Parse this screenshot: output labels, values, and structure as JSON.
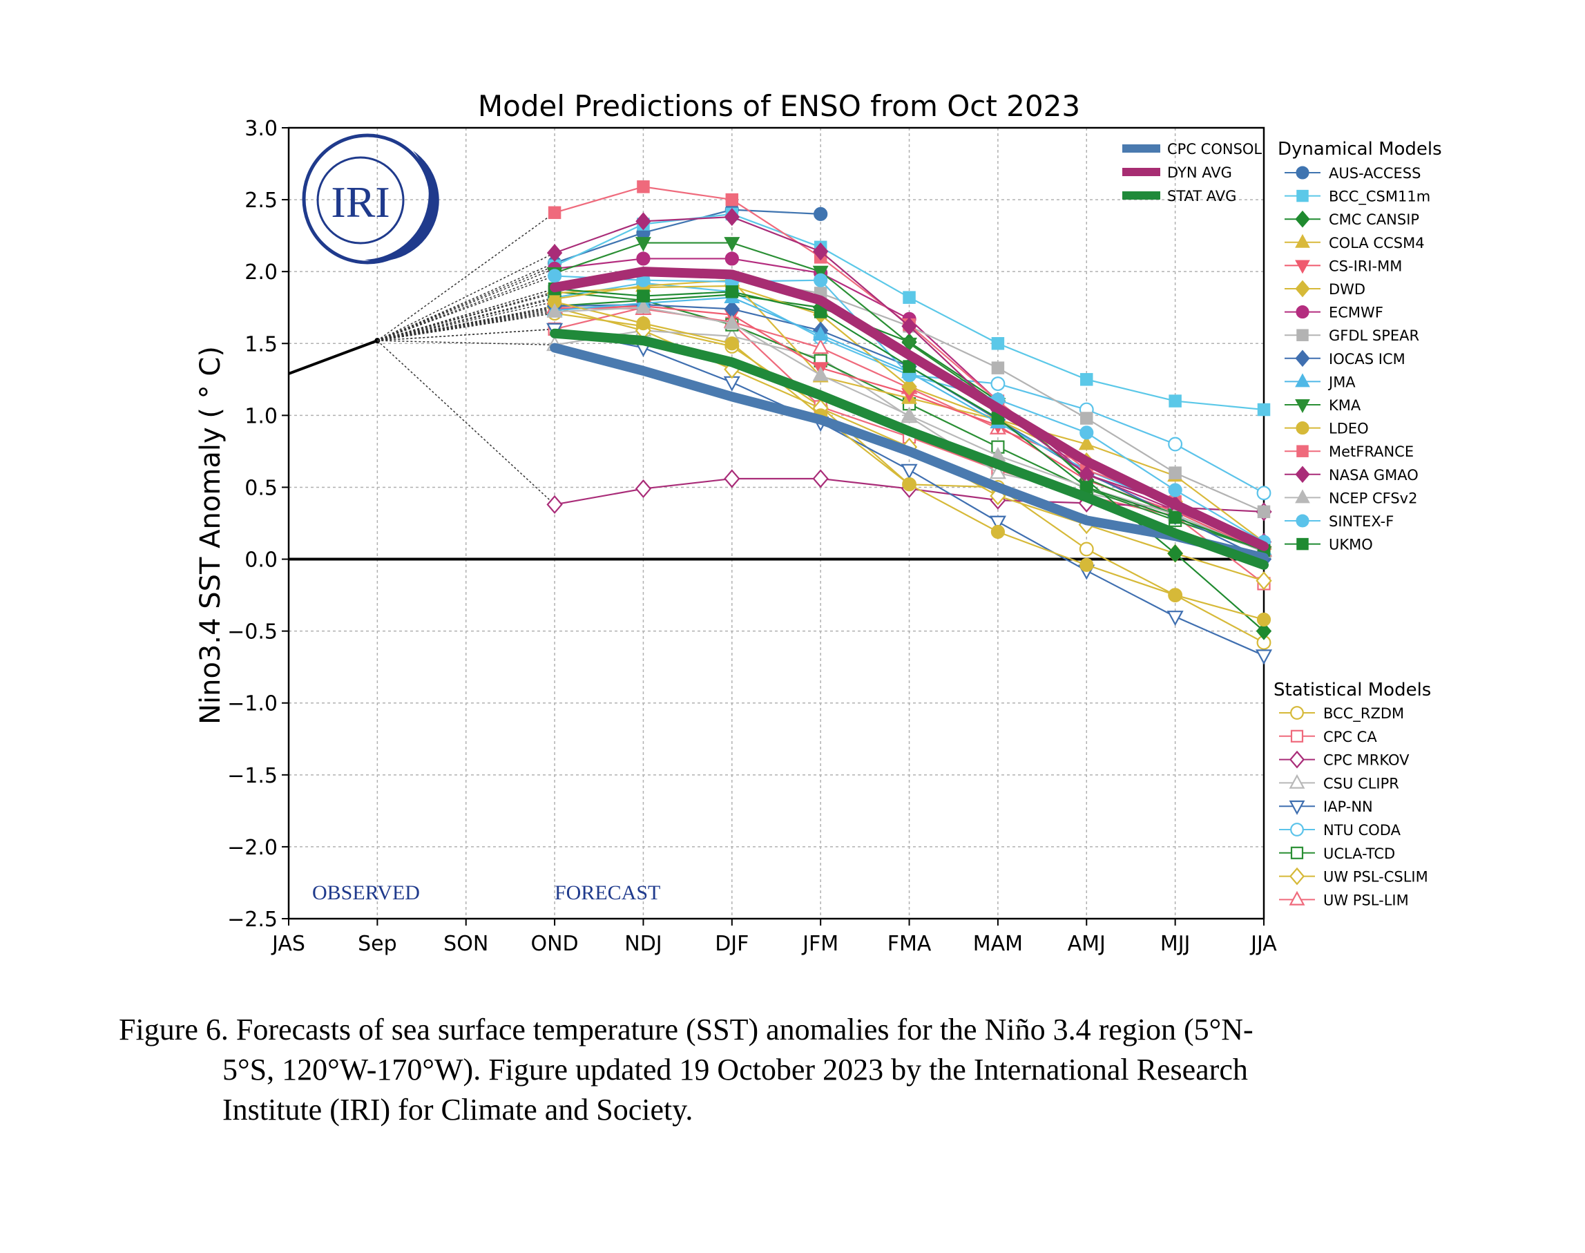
{
  "chart_data": {
    "type": "line",
    "title": "Model Predictions of ENSO from Oct 2023",
    "ylabel": "Nino3.4 SST Anomaly ( ° C)",
    "xlabel": "",
    "categories": [
      "JAS",
      "Sep",
      "SON",
      "OND",
      "NDJ",
      "DJF",
      "JFM",
      "FMA",
      "MAM",
      "AMJ",
      "MJJ",
      "JJA"
    ],
    "ylim": [
      -2.5,
      3.0
    ],
    "yticks": [
      3.0,
      2.5,
      2.0,
      1.5,
      1.0,
      0.5,
      0.0,
      -0.5,
      -1.0,
      -1.5,
      -2.0,
      -2.5
    ],
    "ytick_labels": [
      "3.0",
      "2.5",
      "2.0",
      "1.5",
      "1.0",
      "0.5",
      "0.0",
      "−0.5",
      "−1.0",
      "−1.5",
      "−2.0",
      "−2.5"
    ],
    "grid": true,
    "observed": {
      "x": [
        "JAS",
        "Sep"
      ],
      "values": [
        1.29,
        1.52
      ]
    },
    "annotations": {
      "observed": "OBSERVED",
      "forecast": "FORECAST"
    },
    "averages": [
      {
        "name": "CPC CONSOL",
        "color": "#4a7aaf",
        "values": [
          1.47,
          1.31,
          1.13,
          0.97,
          0.75,
          0.5,
          0.27,
          0.16,
          0.01
        ]
      },
      {
        "name": "DYN AVG",
        "color": "#a72d72",
        "values": [
          1.89,
          2.0,
          1.98,
          1.8,
          1.42,
          1.05,
          0.68,
          0.38,
          0.09
        ]
      },
      {
        "name": "STAT AVG",
        "color": "#208a3a",
        "values": [
          1.57,
          1.52,
          1.37,
          1.14,
          0.89,
          0.66,
          0.43,
          0.18,
          -0.04
        ]
      }
    ],
    "legend_groups": {
      "dynamical": "Dynamical Models",
      "statistical": "Statistical Models"
    },
    "dynamical": [
      {
        "name": "AUS-ACCESS",
        "color": "#3f74b0",
        "marker": "circle",
        "values": [
          2.06,
          2.27,
          2.43,
          2.4
        ]
      },
      {
        "name": "BCC_CSM11m",
        "color": "#5bc8e8",
        "marker": "square",
        "values": [
          2.04,
          2.33,
          2.4,
          2.17,
          1.82,
          1.5,
          1.25,
          1.1,
          1.04
        ]
      },
      {
        "name": "CMC CANSIP",
        "color": "#1f8a2f",
        "marker": "diamond",
        "values": [
          1.76,
          1.8,
          1.84,
          1.75,
          1.51,
          1.1,
          0.55,
          0.04,
          -0.5
        ]
      },
      {
        "name": "COLA CCSM4",
        "color": "#d9b93b",
        "marker": "triangle-up",
        "values": [
          1.81,
          1.9,
          1.94,
          1.27,
          1.12,
          0.97,
          0.8,
          0.58,
          0.12
        ]
      },
      {
        "name": "CS-IRI-MM",
        "color": "#ef5a6e",
        "marker": "triangle-down",
        "values": [
          1.74,
          1.76,
          1.7,
          1.33,
          1.15,
          0.93,
          0.55,
          0.33,
          0.05
        ]
      },
      {
        "name": "DWD",
        "color": "#d6b938",
        "marker": "diamond",
        "values": [
          1.85,
          1.89,
          1.9,
          1.7,
          1.2,
          0.97,
          0.68,
          0.4,
          0.07
        ]
      },
      {
        "name": "ECMWF",
        "color": "#b42d7f",
        "marker": "circle",
        "values": [
          2.02,
          2.09,
          2.09,
          1.99,
          1.67,
          1.1,
          0.59,
          0.34,
          0.08
        ]
      },
      {
        "name": "GFDL SPEAR",
        "color": "#b3b3b3",
        "marker": "square",
        "values": [
          1.88,
          1.98,
          1.95,
          1.85,
          1.62,
          1.33,
          0.98,
          0.6,
          0.33
        ]
      },
      {
        "name": "IOCAS ICM",
        "color": "#3f6fb0",
        "marker": "diamond",
        "values": [
          1.76,
          1.77,
          1.74,
          1.59,
          1.34,
          0.97,
          0.6,
          0.3,
          0.0
        ]
      },
      {
        "name": "JMA",
        "color": "#4fb8e6",
        "marker": "triangle-up",
        "values": [
          1.73,
          1.78,
          1.82,
          1.56,
          1.3,
          0.95,
          0.62,
          0.37,
          0.07
        ]
      },
      {
        "name": "KMA",
        "color": "#2a8f34",
        "marker": "triangle-down",
        "values": [
          1.99,
          2.2,
          2.2,
          2.0,
          1.5,
          1.08,
          0.56,
          0.31,
          0.05
        ]
      },
      {
        "name": "LDEO",
        "color": "#d6b938",
        "marker": "circle",
        "values": [
          1.79,
          1.64,
          1.5,
          1.0,
          0.52,
          0.19,
          -0.04,
          -0.25,
          -0.42
        ]
      },
      {
        "name": "MetFRANCE",
        "color": "#ef6a7c",
        "marker": "square",
        "values": [
          2.41,
          2.59,
          2.5,
          2.1,
          1.63,
          1.1,
          0.62,
          0.4,
          0.1
        ]
      },
      {
        "name": "NASA GMAO",
        "color": "#a92c78",
        "marker": "diamond",
        "values": [
          2.13,
          2.35,
          2.38,
          2.14,
          1.62,
          1.04,
          0.59,
          0.38,
          0.12
        ]
      },
      {
        "name": "NCEP CFSv2",
        "color": "#b8b8b8",
        "marker": "triangle-up",
        "values": [
          1.72,
          1.75,
          1.64,
          1.28,
          1.0,
          0.72,
          0.5,
          0.31,
          0.05
        ]
      },
      {
        "name": "SINTEX-F",
        "color": "#5bc3ea",
        "marker": "circle",
        "values": [
          1.97,
          1.94,
          1.93,
          1.94,
          1.28,
          1.11,
          0.88,
          0.48,
          0.12
        ]
      },
      {
        "name": "UKMO",
        "color": "#1e8a31",
        "marker": "square",
        "values": [
          1.88,
          1.83,
          1.86,
          1.72,
          1.34,
          0.98,
          0.5,
          0.29,
          0.06
        ]
      }
    ],
    "statistical": [
      {
        "name": "BCC_RZDM",
        "color": "#d6b938",
        "marker": "circle-open",
        "values": [
          1.71,
          1.62,
          1.48,
          1.06,
          0.52,
          0.5,
          0.07,
          -0.25,
          -0.58
        ]
      },
      {
        "name": "CPC CA",
        "color": "#ef6a7c",
        "marker": "square-open",
        "values": [
          1.6,
          1.75,
          1.64,
          1.06,
          0.85,
          0.62,
          0.44,
          0.3,
          -0.17
        ]
      },
      {
        "name": "CPC MRKOV",
        "color": "#a92c78",
        "marker": "diamond-open",
        "values": [
          0.38,
          0.49,
          0.56,
          0.56,
          0.49,
          0.41,
          0.39,
          0.36,
          0.33
        ]
      },
      {
        "name": "CSU CLIPR",
        "color": "#b8b8b8",
        "marker": "triangle-up-open",
        "values": [
          1.49,
          1.59,
          1.55,
          1.4,
          0.99,
          0.6,
          0.46,
          0.33,
          0.11
        ]
      },
      {
        "name": "IAP-NN",
        "color": "#3f6fb0",
        "marker": "triangle-down-open",
        "values": [
          1.6,
          1.47,
          1.23,
          0.95,
          0.62,
          0.26,
          -0.08,
          -0.4,
          -0.67
        ]
      },
      {
        "name": "NTU CODA",
        "color": "#5bc3ea",
        "marker": "circle-open",
        "values": [
          1.82,
          1.92,
          1.86,
          1.54,
          1.28,
          1.22,
          1.04,
          0.8,
          0.46
        ]
      },
      {
        "name": "UCLA-TCD",
        "color": "#2a8f34",
        "marker": "square-open",
        "values": [
          1.86,
          1.8,
          1.63,
          1.38,
          1.08,
          0.78,
          0.49,
          0.27,
          0.06
        ]
      },
      {
        "name": "UW PSL-CSLIM",
        "color": "#d6b938",
        "marker": "diamond-open",
        "values": [
          1.75,
          1.59,
          1.32,
          1.05,
          0.78,
          0.44,
          0.24,
          0.04,
          -0.15
        ]
      },
      {
        "name": "UW PSL-LIM",
        "color": "#ef6a7c",
        "marker": "triangle-up-open",
        "values": [
          1.75,
          1.74,
          1.65,
          1.47,
          1.19,
          0.91,
          0.66,
          0.38,
          0.06
        ]
      }
    ]
  },
  "caption": {
    "line1": "Figure 6. Forecasts of sea surface temperature (SST) anomalies for the Niño 3.4 region (5°N-",
    "line2": "5°S, 120°W-170°W). Figure updated 19 October 2023 by the International Research",
    "line3": "Institute (IRI) for Climate and Society."
  },
  "logo": {
    "text": "IRI",
    "color": "#1f3a8c"
  }
}
